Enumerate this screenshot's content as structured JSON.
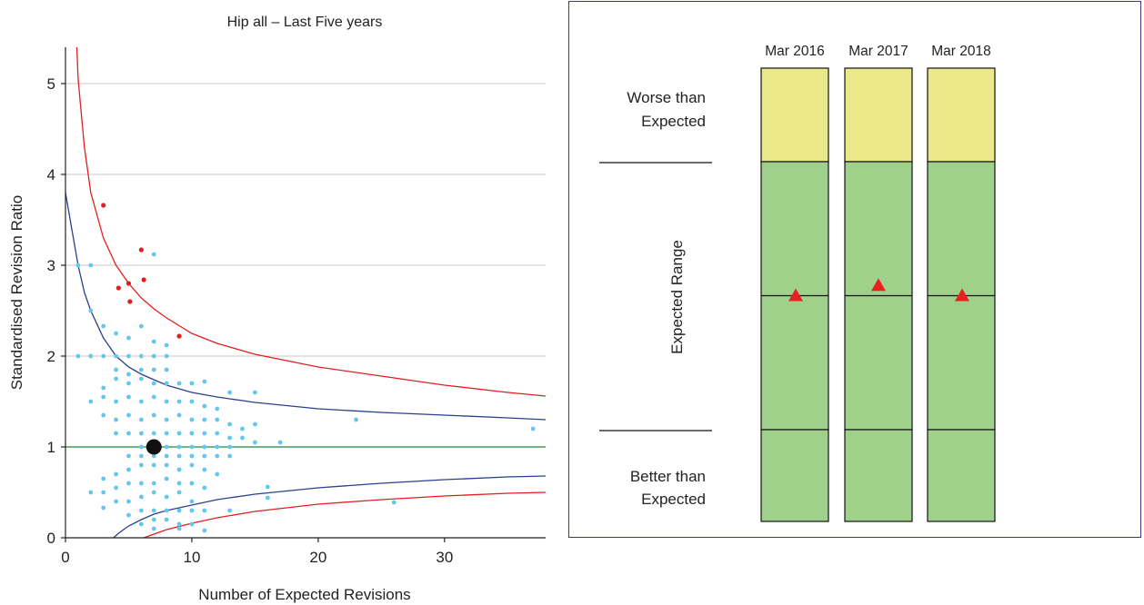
{
  "chart_data": [
    {
      "type": "scatter",
      "title": "Hip all – Last Five years",
      "xlabel": "Number of Expected Revisions",
      "ylabel": "Standardised Revision Ratio",
      "xlim": [
        0,
        38
      ],
      "ylim": [
        0,
        5.4
      ],
      "x_ticks": [
        0,
        10,
        20,
        30
      ],
      "y_ticks": [
        0,
        1,
        2,
        3,
        4,
        5
      ],
      "grid": "horizontal",
      "reference_line": 1,
      "limits": {
        "upper_red": [
          [
            0.9,
            5.4
          ],
          [
            1,
            5.05
          ],
          [
            1.5,
            4.3
          ],
          [
            2,
            3.8
          ],
          [
            3,
            3.3
          ],
          [
            4,
            3.0
          ],
          [
            5,
            2.8
          ],
          [
            6,
            2.64
          ],
          [
            7,
            2.52
          ],
          [
            8,
            2.42
          ],
          [
            10,
            2.25
          ],
          [
            12,
            2.14
          ],
          [
            15,
            2.02
          ],
          [
            20,
            1.88
          ],
          [
            25,
            1.78
          ],
          [
            30,
            1.68
          ],
          [
            35,
            1.6
          ],
          [
            38,
            1.56
          ]
        ],
        "upper_blue": [
          [
            0,
            3.8
          ],
          [
            0.5,
            3.4
          ],
          [
            1,
            3.0
          ],
          [
            1.5,
            2.7
          ],
          [
            2,
            2.5
          ],
          [
            3,
            2.2
          ],
          [
            4,
            2.0
          ],
          [
            5,
            1.88
          ],
          [
            6,
            1.8
          ],
          [
            8,
            1.68
          ],
          [
            10,
            1.6
          ],
          [
            12,
            1.55
          ],
          [
            15,
            1.49
          ],
          [
            20,
            1.42
          ],
          [
            25,
            1.38
          ],
          [
            30,
            1.35
          ],
          [
            35,
            1.32
          ],
          [
            38,
            1.3
          ]
        ],
        "lower_blue": [
          [
            3.8,
            0
          ],
          [
            4.2,
            0.05
          ],
          [
            5,
            0.13
          ],
          [
            6,
            0.2
          ],
          [
            7,
            0.26
          ],
          [
            8,
            0.3
          ],
          [
            10,
            0.36
          ],
          [
            12,
            0.42
          ],
          [
            15,
            0.48
          ],
          [
            20,
            0.55
          ],
          [
            25,
            0.6
          ],
          [
            30,
            0.64
          ],
          [
            35,
            0.67
          ],
          [
            38,
            0.68
          ]
        ],
        "lower_red": [
          [
            6.2,
            0
          ],
          [
            7,
            0.04
          ],
          [
            8,
            0.09
          ],
          [
            10,
            0.16
          ],
          [
            12,
            0.22
          ],
          [
            15,
            0.29
          ],
          [
            20,
            0.37
          ],
          [
            25,
            0.42
          ],
          [
            30,
            0.46
          ],
          [
            35,
            0.49
          ],
          [
            38,
            0.5
          ]
        ]
      },
      "highlight_point": [
        7,
        1
      ],
      "red_points": [
        [
          3,
          3.66
        ],
        [
          4.2,
          2.75
        ],
        [
          5,
          2.8
        ],
        [
          5.1,
          2.6
        ],
        [
          6,
          3.17
        ],
        [
          6.2,
          2.84
        ],
        [
          9,
          2.22
        ]
      ],
      "blue_points": [
        [
          1,
          3.0
        ],
        [
          2,
          3.0
        ],
        [
          7,
          3.12
        ],
        [
          2,
          2.5
        ],
        [
          3,
          2.33
        ],
        [
          4,
          2.25
        ],
        [
          5,
          2.2
        ],
        [
          6,
          2.33
        ],
        [
          7,
          2.16
        ],
        [
          8,
          2.12
        ],
        [
          1,
          2.0
        ],
        [
          2,
          2.0
        ],
        [
          3,
          2.0
        ],
        [
          4,
          2.0
        ],
        [
          5,
          2.0
        ],
        [
          6,
          2.0
        ],
        [
          7,
          2.0
        ],
        [
          8,
          2.0
        ],
        [
          4,
          1.85
        ],
        [
          5,
          1.8
        ],
        [
          6,
          1.85
        ],
        [
          7,
          1.85
        ],
        [
          8,
          1.85
        ],
        [
          3,
          1.65
        ],
        [
          4,
          1.75
        ],
        [
          5,
          1.7
        ],
        [
          6,
          1.75
        ],
        [
          7,
          1.7
        ],
        [
          8,
          1.7
        ],
        [
          9,
          1.7
        ],
        [
          10,
          1.7
        ],
        [
          11,
          1.72
        ],
        [
          2,
          1.5
        ],
        [
          3,
          1.55
        ],
        [
          4,
          1.5
        ],
        [
          5,
          1.55
        ],
        [
          6,
          1.5
        ],
        [
          7,
          1.55
        ],
        [
          8,
          1.5
        ],
        [
          9,
          1.5
        ],
        [
          10,
          1.5
        ],
        [
          11,
          1.45
        ],
        [
          13,
          1.6
        ],
        [
          15,
          1.6
        ],
        [
          3,
          1.35
        ],
        [
          4,
          1.3
        ],
        [
          5,
          1.35
        ],
        [
          6,
          1.3
        ],
        [
          7,
          1.35
        ],
        [
          8,
          1.3
        ],
        [
          9,
          1.35
        ],
        [
          10,
          1.3
        ],
        [
          12,
          1.42
        ],
        [
          11,
          1.3
        ],
        [
          12,
          1.3
        ],
        [
          13,
          1.25
        ],
        [
          14,
          1.2
        ],
        [
          15,
          1.25
        ],
        [
          23,
          1.3
        ],
        [
          37,
          1.2
        ],
        [
          4,
          1.15
        ],
        [
          5,
          1.15
        ],
        [
          6,
          1.15
        ],
        [
          7,
          1.15
        ],
        [
          8,
          1.15
        ],
        [
          9,
          1.15
        ],
        [
          10,
          1.15
        ],
        [
          11,
          1.15
        ],
        [
          12,
          1.15
        ],
        [
          13,
          1.1
        ],
        [
          14,
          1.1
        ],
        [
          15,
          1.05
        ],
        [
          17,
          1.05
        ],
        [
          6,
          1.0
        ],
        [
          8,
          1.0
        ],
        [
          9,
          1.0
        ],
        [
          10,
          1.0
        ],
        [
          11,
          1.0
        ],
        [
          12,
          1.0
        ],
        [
          13,
          1.0
        ],
        [
          5,
          0.9
        ],
        [
          6,
          0.9
        ],
        [
          7,
          0.9
        ],
        [
          8,
          0.9
        ],
        [
          9,
          0.9
        ],
        [
          10,
          0.9
        ],
        [
          11,
          0.9
        ],
        [
          12,
          0.9
        ],
        [
          13,
          0.9
        ],
        [
          3,
          0.65
        ],
        [
          4,
          0.7
        ],
        [
          5,
          0.75
        ],
        [
          6,
          0.8
        ],
        [
          7,
          0.8
        ],
        [
          8,
          0.8
        ],
        [
          9,
          0.75
        ],
        [
          10,
          0.8
        ],
        [
          11,
          0.75
        ],
        [
          12,
          0.7
        ],
        [
          2,
          0.5
        ],
        [
          3,
          0.5
        ],
        [
          4,
          0.55
        ],
        [
          5,
          0.6
        ],
        [
          6,
          0.6
        ],
        [
          7,
          0.6
        ],
        [
          8,
          0.65
        ],
        [
          9,
          0.6
        ],
        [
          10,
          0.6
        ],
        [
          11,
          0.55
        ],
        [
          3,
          0.33
        ],
        [
          4,
          0.4
        ],
        [
          5,
          0.4
        ],
        [
          6,
          0.45
        ],
        [
          7,
          0.5
        ],
        [
          8,
          0.45
        ],
        [
          9,
          0.5
        ],
        [
          10,
          0.4
        ],
        [
          5,
          0.25
        ],
        [
          6,
          0.3
        ],
        [
          7,
          0.3
        ],
        [
          8,
          0.3
        ],
        [
          9,
          0.3
        ],
        [
          10,
          0.3
        ],
        [
          11,
          0.3
        ],
        [
          13,
          0.3
        ],
        [
          6,
          0.15
        ],
        [
          7,
          0.2
        ],
        [
          8,
          0.2
        ],
        [
          9,
          0.15
        ],
        [
          10,
          0.15
        ],
        [
          16,
          0.56
        ],
        [
          16,
          0.44
        ],
        [
          26,
          0.39
        ],
        [
          7,
          0.1
        ],
        [
          9,
          0.1
        ],
        [
          11,
          0.08
        ]
      ]
    },
    {
      "type": "bar",
      "categories": [
        "Mar 2016",
        "Mar 2017",
        "Mar 2018"
      ],
      "bands": [
        "Worse than Expected",
        "Expected Range",
        "Better than Expected"
      ],
      "band_labels": {
        "worse": [
          "Worse than",
          "Expected"
        ],
        "expected": "Expected Range",
        "better": [
          "Better than",
          "Expected"
        ]
      },
      "markers": [
        0.5,
        0.538,
        0.5
      ],
      "colors": {
        "yellow": "#ebe88a",
        "green": "#9fd18a",
        "marker": "#e82020",
        "label_blue": "#2b3f8f"
      }
    }
  ]
}
